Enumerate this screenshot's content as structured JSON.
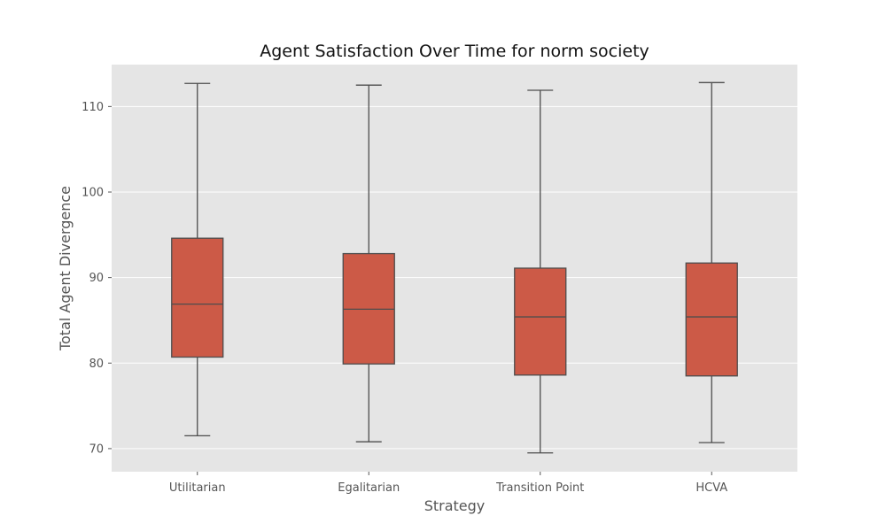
{
  "chart_data": {
    "type": "box",
    "title": "Agent Satisfaction Over Time for norm society",
    "xlabel": "Strategy",
    "ylabel": "Total Agent Divergence",
    "categories": [
      "Utilitarian",
      "Egalitarian",
      "Transition Point",
      "HCVA"
    ],
    "boxes": [
      {
        "category": "Utilitarian",
        "whisker_low": 71.5,
        "q1": 80.7,
        "median": 86.9,
        "q3": 94.6,
        "whisker_high": 112.7
      },
      {
        "category": "Egalitarian",
        "whisker_low": 70.8,
        "q1": 79.9,
        "median": 86.3,
        "q3": 92.8,
        "whisker_high": 112.5
      },
      {
        "category": "Transition Point",
        "whisker_low": 69.5,
        "q1": 78.6,
        "median": 85.4,
        "q3": 91.1,
        "whisker_high": 111.9
      },
      {
        "category": "HCVA",
        "whisker_low": 70.7,
        "q1": 78.5,
        "median": 85.4,
        "q3": 91.7,
        "whisker_high": 112.8
      }
    ],
    "ylim": [
      67.3,
      114.9
    ],
    "yticks": [
      70,
      80,
      90,
      100,
      110
    ],
    "grid": true,
    "legend": "none",
    "colors": {
      "box_fill": "#cc5a47",
      "box_edge": "#4d4d4d",
      "plot_background": "#e5e5e5",
      "grid": "#ffffff"
    }
  }
}
